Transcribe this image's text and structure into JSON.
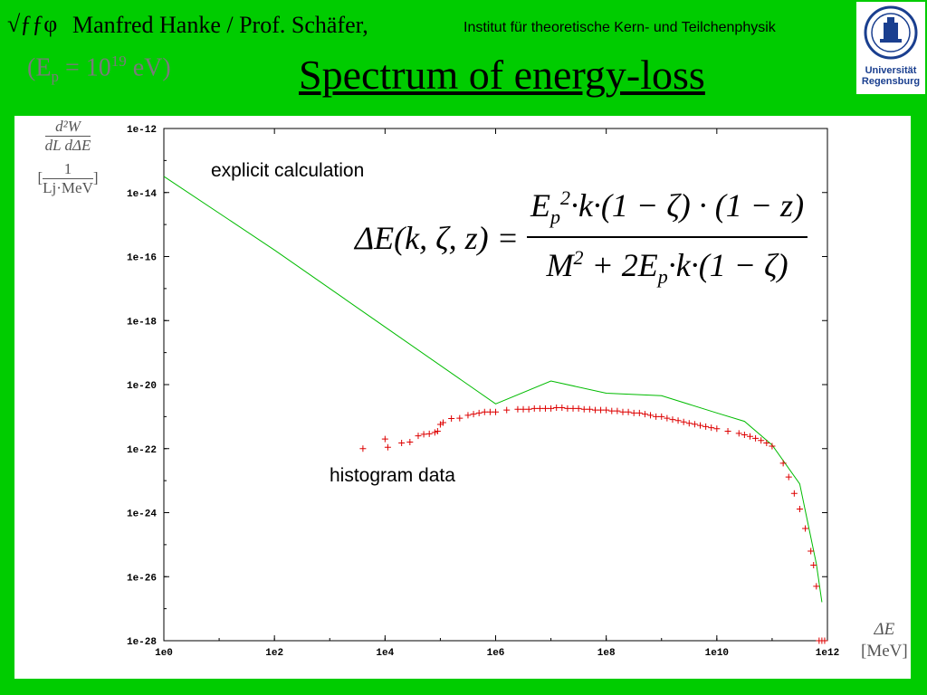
{
  "header": {
    "logo_text": "√ƒƒφ",
    "authors": "Manfred Hanke / Prof. Schäfer,",
    "institute": "Institut für theoretische Kern- und Teilchenphysik",
    "university_line1": "Universität",
    "university_line2": "Regensburg"
  },
  "energy_label": {
    "prefix": "(E",
    "sub": "p",
    "mid": " = 10",
    "sup": "19",
    "suffix": " eV)"
  },
  "title": "Spectrum of energy-loss",
  "formula": {
    "lhs": "ΔE(k, ζ, z) = ",
    "num_a": "E",
    "num_sub": "p",
    "num_sup": "2",
    "num_b": "·k·(1 − ζ) · (1 − z)",
    "den_a": "M",
    "den_sup": "2",
    "den_b": " + 2E",
    "den_sub": "p",
    "den_c": "·k·(1 − ζ)"
  },
  "y_axis_label": {
    "numerator": "d²W",
    "denominator": "dL dΔE",
    "unit_num": "1",
    "unit_den": "Lj·MeV"
  },
  "x_axis_label": {
    "symbol": "ΔE",
    "unit": "[MeV]"
  },
  "chart_data": {
    "type": "line",
    "xscale": "log",
    "yscale": "log",
    "xlim": [
      1,
      1000000000000.0
    ],
    "ylim": [
      1e-28,
      1e-12
    ],
    "x_ticks": [
      "1e0",
      "1e2",
      "1e4",
      "1e6",
      "1e8",
      "1e10",
      "1e12"
    ],
    "y_ticks": [
      "1e-12",
      "1e-14",
      "1e-16",
      "1e-18",
      "1e-20",
      "1e-22",
      "1e-24",
      "1e-26",
      "1e-28"
    ],
    "annotations": [
      "explicit calculation",
      "histogram data"
    ],
    "series": [
      {
        "style": "line",
        "color": "#00bb00",
        "x": [
          1,
          100,
          10000,
          1000000,
          10000000,
          100000000,
          1000000000,
          10000000000,
          31600000000,
          100000000000,
          316000000000,
          631000000000,
          794000000000
        ],
        "y": [
          3.2e-14,
          1.6e-16,
          6.3e-19,
          2.5e-21,
          1.3e-20,
          5.4e-21,
          4.5e-21,
          1.3e-21,
          7.1e-22,
          1.3e-22,
          7.9e-24,
          2.5e-26,
          1.6e-27
        ]
      },
      {
        "style": "markers",
        "marker": "+",
        "color": "#dd0000",
        "x": [
          3981,
          10000,
          11220,
          19950,
          28180,
          39810,
          50120,
          63100,
          79430,
          89130,
          100000,
          112200,
          158500,
          223900,
          316200,
          398100,
          501200,
          631000,
          794300,
          1000000,
          1585000,
          2512000,
          3162000,
          3981000,
          5012000,
          6310000,
          7943000,
          10000000,
          12590000,
          15850000,
          19950000,
          25120000,
          31620000,
          39810000,
          50120000,
          63100000,
          79430000,
          100000000,
          125900000,
          158500000,
          199500000,
          251200000,
          316200000,
          398100000,
          501200000,
          631000000,
          794300000,
          1000000000,
          1259000000,
          1585000000,
          1995000000,
          2512000000,
          3162000000,
          3981000000,
          5012000000,
          6310000000,
          7943000000,
          10000000000,
          15850000000,
          25120000000,
          31620000000,
          39810000000,
          50120000000,
          63100000000,
          79430000000,
          100000000000,
          158500000000,
          199500000000,
          251200000000,
          316200000000,
          398100000000,
          501200000000,
          562300000000,
          631000000000,
          707900000000,
          794300000000,
          891300000000
        ],
        "y": [
          1e-22,
          2e-22,
          1.1e-22,
          1.5e-22,
          1.6e-22,
          2.5e-22,
          2.8e-22,
          2.9e-22,
          3.2e-22,
          3.5e-22,
          5.7e-22,
          6.5e-22,
          8.7e-22,
          8.9e-22,
          1.1e-21,
          1.2e-21,
          1.3e-21,
          1.4e-21,
          1.4e-21,
          1.4e-21,
          1.6e-21,
          1.7e-21,
          1.7e-21,
          1.7e-21,
          1.8e-21,
          1.8e-21,
          1.8e-21,
          1.8e-21,
          1.9e-21,
          1.9e-21,
          1.8e-21,
          1.8e-21,
          1.8e-21,
          1.7e-21,
          1.7e-21,
          1.6e-21,
          1.6e-21,
          1.6e-21,
          1.5e-21,
          1.5e-21,
          1.4e-21,
          1.4e-21,
          1.3e-21,
          1.3e-21,
          1.2e-21,
          1.1e-21,
          1e-21,
          1e-21,
          8.9e-22,
          8.1e-22,
          7.5e-22,
          6.8e-22,
          6.2e-22,
          5.8e-22,
          5.3e-22,
          4.9e-22,
          4.5e-22,
          4.2e-22,
          3.5e-22,
          3e-22,
          2.7e-22,
          2.4e-22,
          2.1e-22,
          1.8e-22,
          1.5e-22,
          1.2e-22,
          3.5e-23,
          1.3e-23,
          4e-24,
          1.3e-24,
          3.2e-25,
          6.3e-26,
          2.3e-26,
          5e-27,
          1e-28,
          1e-28,
          1e-28
        ]
      }
    ]
  }
}
